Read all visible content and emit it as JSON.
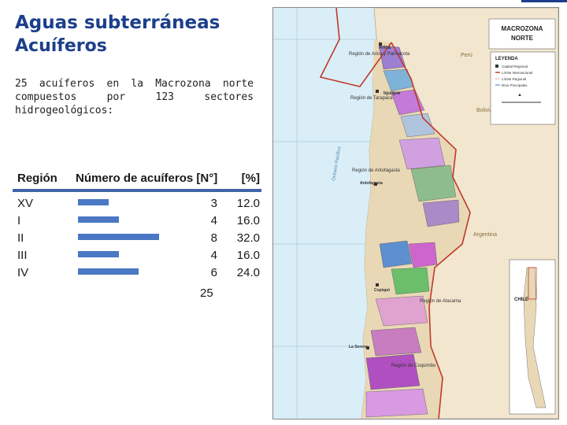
{
  "header": {
    "title": "Aguas subterráneas",
    "subtitle": "Acuíferos"
  },
  "description": {
    "line1": "25 acuíferos en la Macrozona norte",
    "line2": "compuestos por 123 sectores",
    "line3": "hidrogeológicos:"
  },
  "table": {
    "col_region": "Región",
    "col_count": "Número de acuíferos [N°]",
    "col_pct": "[%]",
    "rows": [
      {
        "region": "XV",
        "count": "3",
        "pct": "12.0",
        "value": 3
      },
      {
        "region": "I",
        "count": "4",
        "pct": "16.0",
        "value": 4
      },
      {
        "region": "II",
        "count": "8",
        "pct": "32.0",
        "value": 8
      },
      {
        "region": "III",
        "count": "4",
        "pct": "16.0",
        "value": 4
      },
      {
        "region": "IV",
        "count": "6",
        "pct": "24.0",
        "value": 6
      }
    ],
    "total": "25"
  },
  "map": {
    "title_line1": "MACROZONA",
    "title_line2": "NORTE",
    "legend_title": "LEYENDA",
    "legend_items": [
      "Capital Regional",
      "Límite Internacional",
      "Límite Regional",
      "Ríos Principales"
    ],
    "labels": {
      "arica": "Arica",
      "region_xv": "Región de Arica y Parinacota",
      "peru": "Perú",
      "iquique": "Iquique",
      "region_tarapaca": "Región de Tarapacá",
      "bolivia": "Bolivia",
      "ocean": "Océano Pacífico",
      "region_antofagasta": "Región de Antofagasta",
      "antofagasta": "Antofagasta",
      "argentina": "Argentina",
      "copiapo": "Copiapó",
      "region_atacama": "Región de Atacama",
      "la_serena": "La Serena",
      "region_coquimbo": "Región de Coquimbo",
      "inset_label": "CHILE"
    },
    "colors": {
      "sea": "#d9eef7",
      "land": "#f2e6cf",
      "border": "#c0392b"
    }
  }
}
